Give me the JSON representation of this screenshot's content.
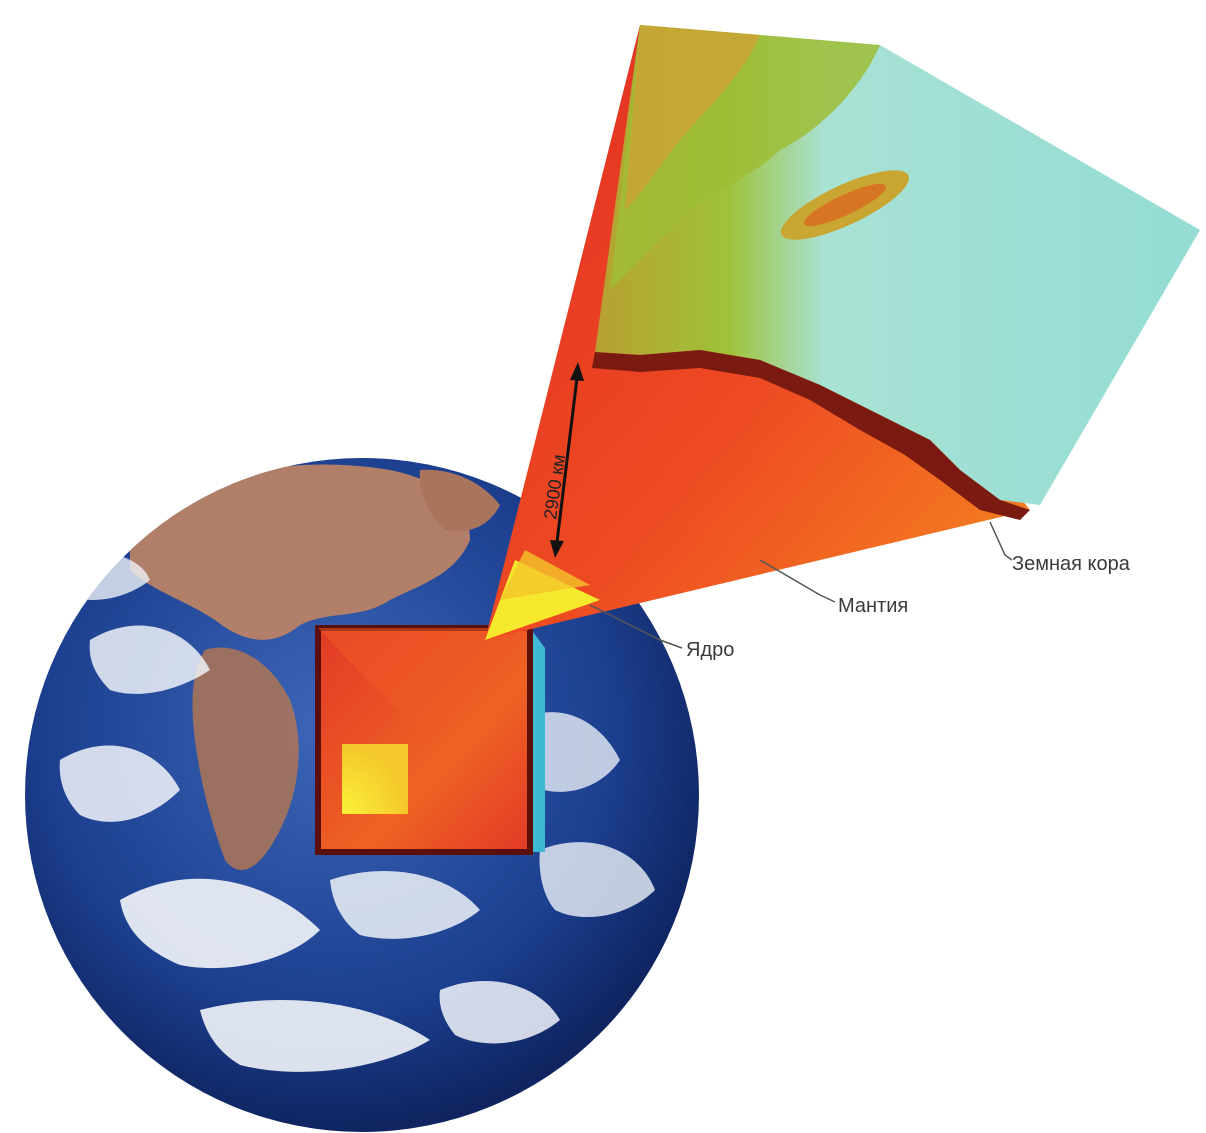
{
  "labels": {
    "crust": "Земная кора",
    "mantle": "Мантия",
    "core": "Ядро",
    "depth": "2900 км"
  },
  "colors": {
    "ocean": "#1c3f8f",
    "cloud": "#f2f5fa",
    "land": "#b07a5c",
    "crust_surface": "#9ee0d6",
    "crust_highland": "#9fc23a",
    "crust_peak": "#c9a532",
    "mantle_outer": "#e8382a",
    "mantle_inner": "#f07a22",
    "core": "#f2ea2a",
    "crust_edge": "#7a1a10",
    "callout_line": "#555555"
  },
  "icons": {
    "globe": "earth-globe-icon",
    "cutaway": "inner-structure-cube-icon"
  }
}
